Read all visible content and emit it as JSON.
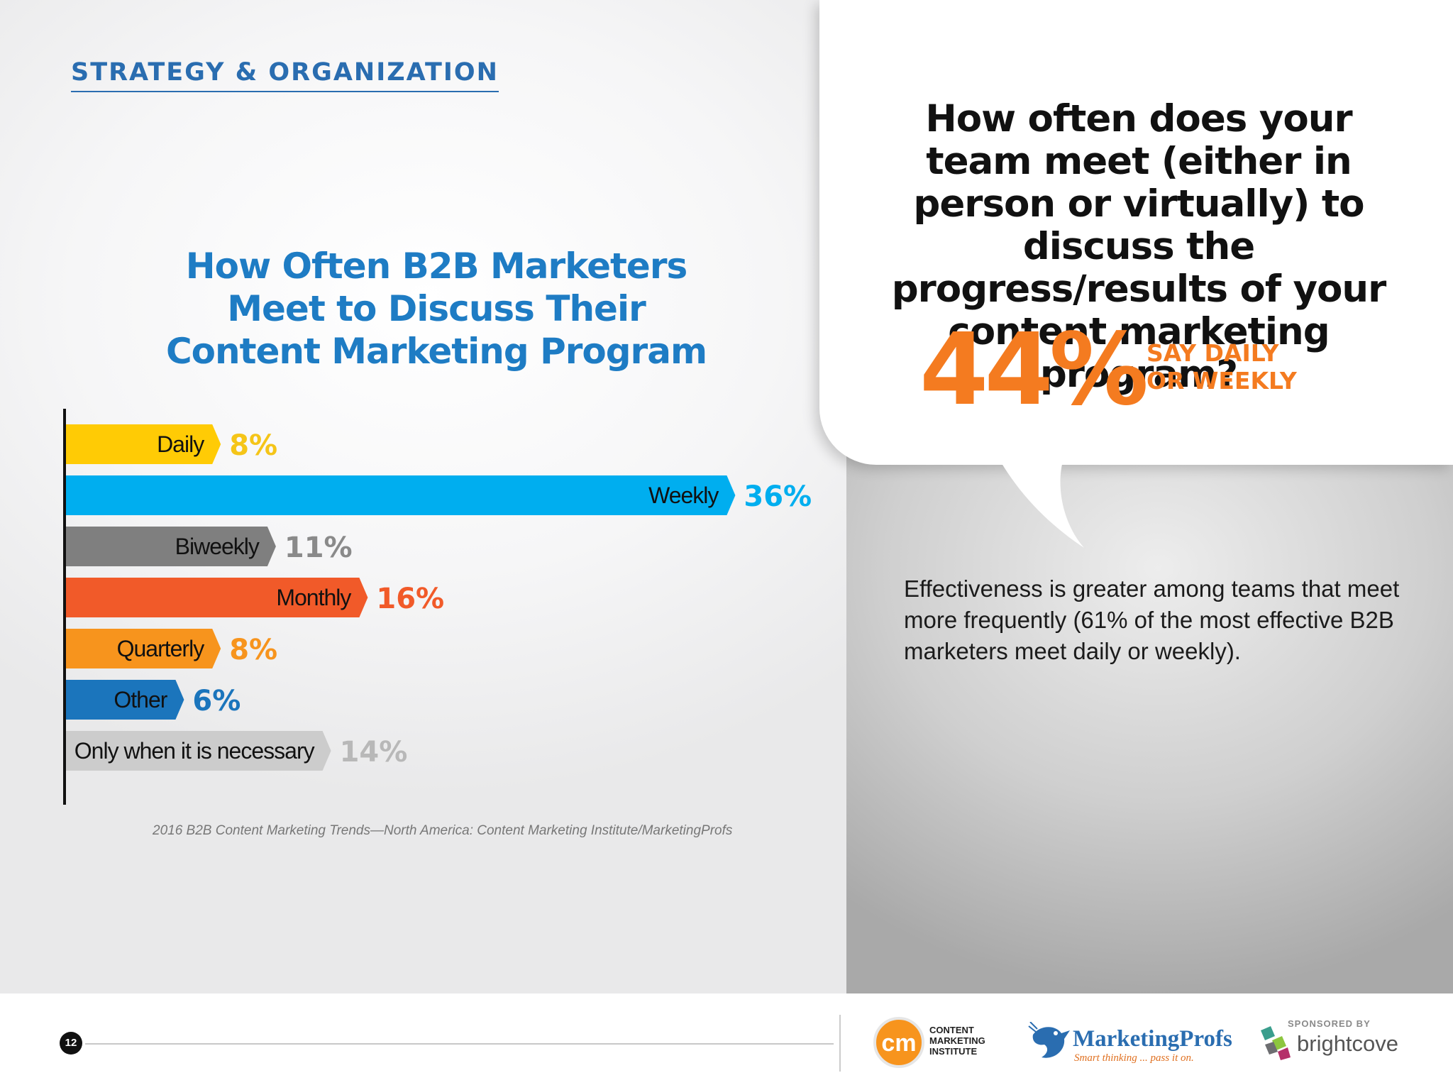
{
  "section_header": "STRATEGY & ORGANIZATION",
  "chart_data": {
    "type": "bar",
    "orientation": "horizontal",
    "title": "How Often B2B Marketers Meet to Discuss Their Content Marketing Program",
    "categories": [
      "Daily",
      "Weekly",
      "Biweekly",
      "Monthly",
      "Quarterly",
      "Other",
      "Only when it is necessary"
    ],
    "values": [
      8,
      36,
      11,
      16,
      8,
      6,
      14
    ],
    "value_labels": [
      "8%",
      "36%",
      "11%",
      "16%",
      "8%",
      "6%",
      "14%"
    ],
    "colors": [
      "#ffcb05",
      "#00aeef",
      "#7f7f7f",
      "#f15a29",
      "#f7941d",
      "#1b75bc",
      "#cccccc"
    ],
    "label_colors": [
      "#f5c518",
      "#00aeef",
      "#8a8a8a",
      "#f15a29",
      "#f7941d",
      "#1b75bc",
      "#b8b8b8"
    ],
    "xlim": [
      0,
      40
    ],
    "legend": "none",
    "grid": false
  },
  "source_note": "2016 B2B Content Marketing Trends—North America: Content Marketing Institute/MarketingProfs",
  "callout": {
    "question": "How often does your team meet (either in person or virtually) to discuss the progress/results of your content marketing program?",
    "big_stat": "44%",
    "stat_caption_line1": "SAY DAILY",
    "stat_caption_line2": "OR WEEKLY",
    "note": "Effectiveness is greater among teams that meet more frequently (61% of the most effective B2B marketers meet daily or weekly).",
    "accent_color": "#f47b20"
  },
  "footer": {
    "page_number": "12",
    "cmi_mark": "cm",
    "cmi_line1": "CONTENT",
    "cmi_line2": "MARKETING",
    "cmi_line3": "INSTITUTE",
    "mp_name": "MarketingProfs",
    "mp_tagline": "Smart thinking ... pass it on.",
    "sponsored_label": "SPONSORED BY",
    "sponsor_name": "brightcove"
  }
}
